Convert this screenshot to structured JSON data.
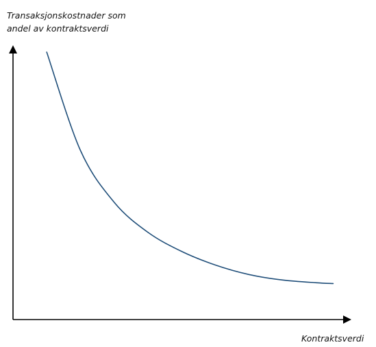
{
  "chart_data": {
    "type": "line",
    "title": "",
    "ylabel": "Transaksjonskostnader som andel av kontraktsverdi",
    "ylabel_lines": [
      "Transaksjonskostnader som",
      "andel av kontraktsverdi"
    ],
    "xlabel": "Kontraktsverdi",
    "ticks": false,
    "grid": false,
    "legend": "none",
    "line_color": "#1f4e79",
    "axis_color": "#000000",
    "xlim": [
      0,
      1
    ],
    "ylim": [
      0,
      1
    ],
    "series": [
      {
        "x": [
          0.1,
          0.2,
          0.3,
          0.4,
          0.5,
          0.6,
          0.7,
          0.8,
          0.9,
          0.95
        ],
        "y": [
          0.98,
          0.62,
          0.43,
          0.32,
          0.25,
          0.2,
          0.165,
          0.145,
          0.135,
          0.132
        ]
      }
    ]
  }
}
